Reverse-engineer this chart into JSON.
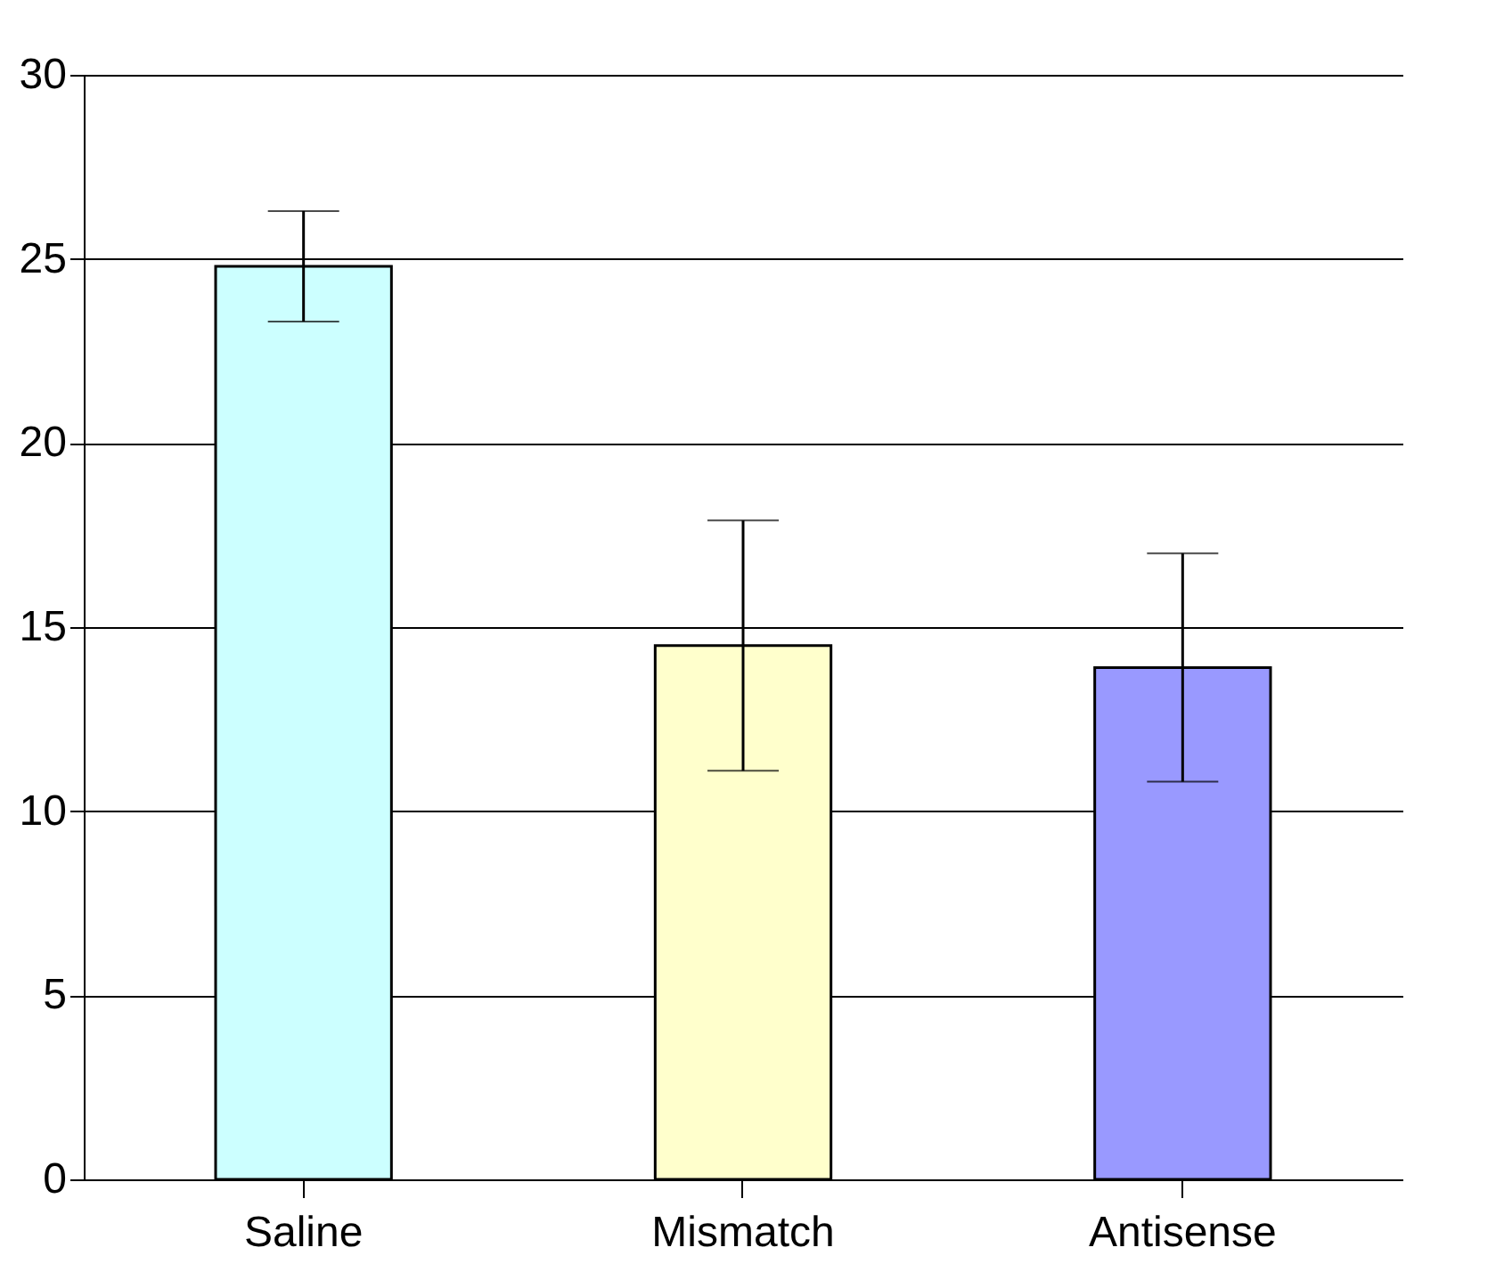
{
  "chart_data": {
    "type": "bar",
    "categories": [
      "Saline",
      "Mismatch",
      "Antisense"
    ],
    "values": [
      24.8,
      14.5,
      13.9
    ],
    "errors": [
      1.5,
      3.4,
      3.1
    ],
    "colors": [
      "#ccffff",
      "#ffffcc",
      "#9999ff"
    ],
    "ylim": [
      0,
      30
    ],
    "yticks": [
      0,
      5,
      10,
      15,
      20,
      25,
      30
    ],
    "grid": "y"
  }
}
